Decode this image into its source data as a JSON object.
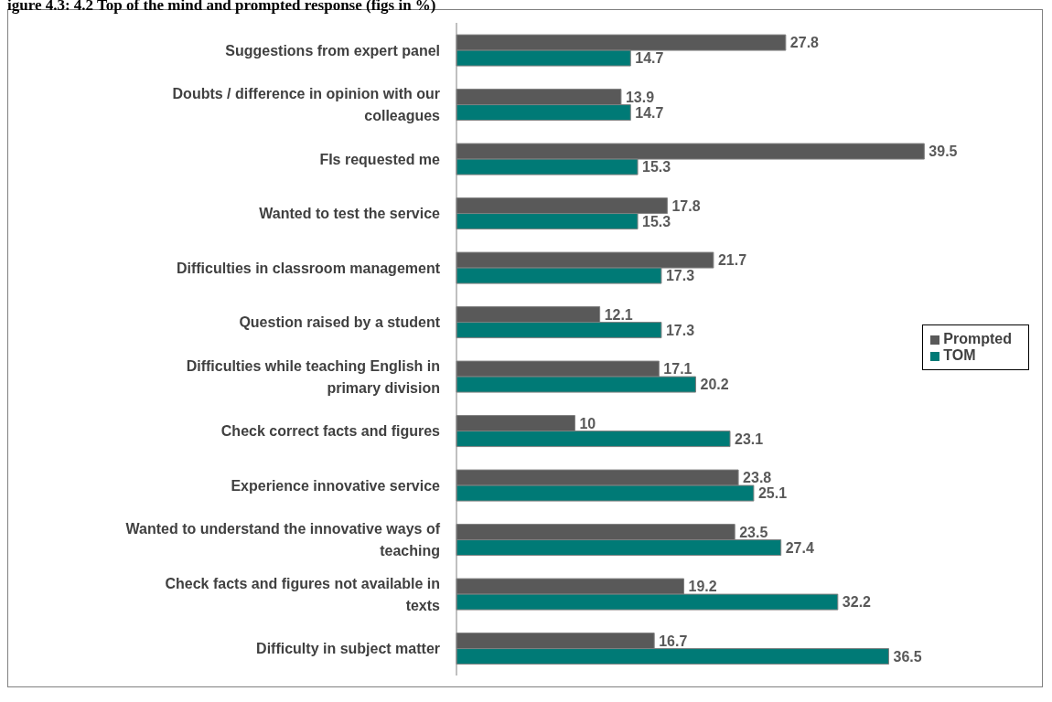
{
  "chart_data": {
    "type": "bar",
    "orientation": "horizontal",
    "title": "igure 4.3: 4.2 Top of the mind and prompted response (figs in %)",
    "categories": [
      "Suggestions from expert panel",
      "Doubts / difference in opinion with our colleagues",
      "FIs requested me",
      "Wanted to test the service",
      "Difficulties in classroom management",
      "Question raised by a student",
      "Difficulties while teaching English in primary division",
      "Check correct facts and figures",
      "Experience innovative service",
      "Wanted to understand the innovative ways of teaching",
      "Check facts and figures not available in texts",
      "Difficulty in subject matter"
    ],
    "series": [
      {
        "name": "Prompted",
        "color": "#595959",
        "values": [
          27.8,
          13.9,
          39.5,
          17.8,
          21.7,
          12.1,
          17.1,
          10,
          23.8,
          23.5,
          19.2,
          16.7
        ]
      },
      {
        "name": "TOM",
        "color": "#007a76",
        "values": [
          14.7,
          14.7,
          15.3,
          15.3,
          17.3,
          17.3,
          20.2,
          23.1,
          25.1,
          27.4,
          32.2,
          36.5
        ]
      }
    ],
    "data_labels": true,
    "legend": "right"
  }
}
